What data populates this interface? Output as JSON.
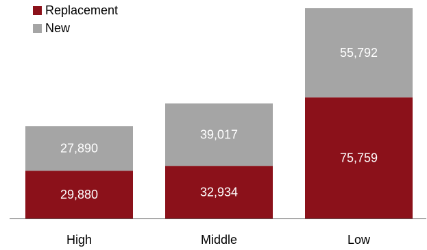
{
  "chart_data": {
    "type": "bar",
    "stacked": true,
    "categories": [
      "High",
      "Middle",
      "Low"
    ],
    "series": [
      {
        "name": "Replacement",
        "values": [
          29880,
          32934,
          75759
        ],
        "color": "#8B111A"
      },
      {
        "name": "New",
        "values": [
          27890,
          39017,
          55792
        ],
        "color": "#A5A5A5"
      }
    ],
    "title": "",
    "xlabel": "",
    "ylabel": "",
    "ylim": [
      0,
      131551
    ],
    "grid": false,
    "y_axis_visible": false,
    "legend": {
      "position": "top-left"
    },
    "data_labels": true,
    "colors": {
      "axis": "#595959",
      "data_label_text": "#FFFFFF"
    }
  }
}
